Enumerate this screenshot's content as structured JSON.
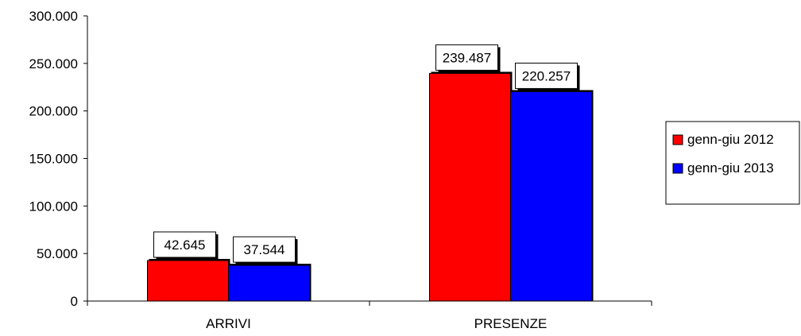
{
  "chart_data": {
    "type": "bar",
    "title": "",
    "xlabel": "",
    "ylabel": "",
    "categories": [
      "ARRIVI",
      "PRESENZE"
    ],
    "series": [
      {
        "name": "genn-giu 2012",
        "values": [
          42645,
          239487
        ],
        "color": "#ff0000",
        "labels": [
          "42.645",
          "239.487"
        ]
      },
      {
        "name": "genn-giu 2013",
        "values": [
          37544,
          220257
        ],
        "color": "#0000ff",
        "labels": [
          "37.544",
          "220.257"
        ]
      }
    ],
    "ylim": [
      0,
      300000
    ],
    "yticks": [
      0,
      50000,
      100000,
      150000,
      200000,
      250000,
      300000
    ],
    "ytick_labels": [
      "0",
      "50.000",
      "100.000",
      "150.000",
      "200.000",
      "250.000",
      "300.000"
    ],
    "grid": false,
    "legend_position": "right"
  }
}
